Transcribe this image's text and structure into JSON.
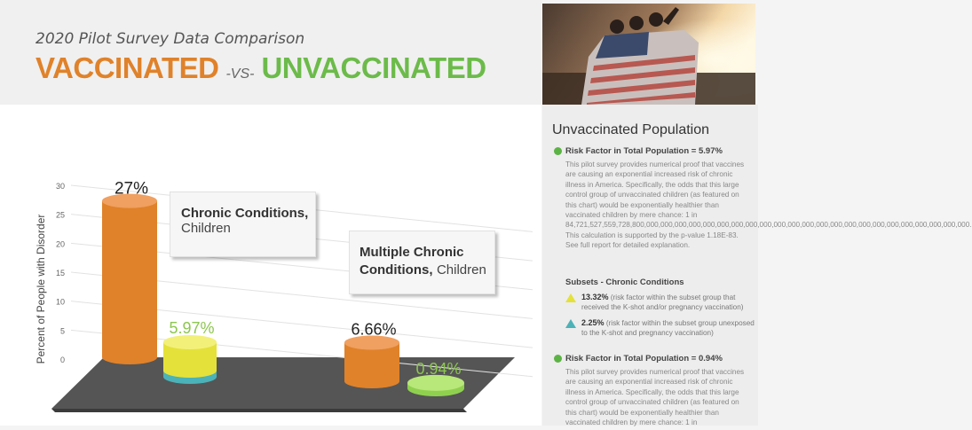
{
  "header": {
    "subtitle": "2020 Pilot Survey Data Comparison",
    "title_left": "VACCINATED",
    "title_vs": "-VS-",
    "title_right": "UNVACCINATED"
  },
  "colors": {
    "orange": "#e0822a",
    "green": "#6cbb4a",
    "yellow": "#e4e13a",
    "teal": "#4bb2b8"
  },
  "chart_data": {
    "type": "bar",
    "ylabel": "Percent of People with Disorder",
    "ylim": [
      0,
      30
    ],
    "yticks": [
      "0",
      "5",
      "10",
      "15",
      "20",
      "25",
      "30"
    ],
    "categories": [
      "Chronic Conditions, Children",
      "Multiple Chronic Conditions, Children"
    ],
    "category_labels": [
      {
        "bold": "Chronic Conditions,",
        "normal": "Children"
      },
      {
        "bold": "Multiple Chronic Conditions,",
        "normal": "Children"
      }
    ],
    "series": [
      {
        "values": [
          27,
          6.66
        ],
        "labels": [
          "27%",
          "6.66%"
        ],
        "color": "#e0822a"
      },
      {
        "values": [
          5.97,
          0.94
        ],
        "labels": [
          "5.97%",
          "0.94%"
        ],
        "color": "#8fd14f"
      }
    ],
    "first_group_subsets": {
      "upper_color": "#e4e13a",
      "lower_color": "#4bb2b8"
    }
  },
  "sidebar": {
    "title": "Unvaccinated Population",
    "rf1": "Risk Factor in Total Population = 5.97%",
    "para1": "This pilot survey provides numerical proof that vaccines are causing an exponential increased risk of chronic illness in America. Specifically, the odds that this large control group of unvaccinated children (as featured on this chart) would be exponentially healthier than vaccinated children by mere chance: 1 in 84,721,527,559,728,800,000,000,000,000,000,000,000,000,000,000,000,000,000,000,000,000,000,000,000,000,000,000,000. This calculation is supported by the p-value 1.18E-83. See full report for detailed explanation.",
    "subsets_title": "Subsets - Chronic Conditions",
    "sub1_value": "13.32%",
    "sub1_text": "(risk factor within the subset group that received the K-shot and/or pregnancy vaccination)",
    "sub2_value": "2.25%",
    "sub2_text": "(risk factor within the subset group unexposed to the K-shot and pregnancy vaccination)",
    "rf2": "Risk Factor in Total Population = 0.94%",
    "para2": "This pilot survey provides numerical proof that vaccines are causing an exponential increased risk of chronic illness in America. Specifically, the odds that this large control group of unvaccinated children (as featured on this chart) would be exponentially healthier than vaccinated children by mere chance: 1 in"
  }
}
